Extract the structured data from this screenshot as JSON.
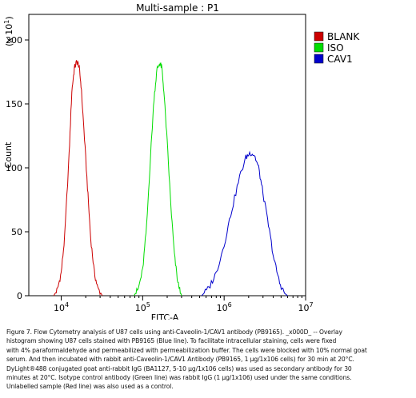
{
  "chart_data": {
    "type": "line",
    "title": "Multi-sample : P1",
    "xlabel": "FITC-A",
    "ylabel": "Count",
    "y_scale_label": "(x 10",
    "y_scale_exponent": "1",
    "y_scale_close": ")",
    "x_scale": "log",
    "xlim": [
      4000,
      10000000
    ],
    "ylim": [
      0,
      220
    ],
    "x_ticks": [
      {
        "value": 10000,
        "base": "10",
        "exp": "4"
      },
      {
        "value": 100000,
        "base": "10",
        "exp": "5"
      },
      {
        "value": 1000000,
        "base": "10",
        "exp": "6"
      },
      {
        "value": 10000000,
        "base": "10",
        "exp": "7"
      }
    ],
    "y_ticks": [
      {
        "value": 0,
        "label": "0"
      },
      {
        "value": 50,
        "label": "50"
      },
      {
        "value": 100,
        "label": "100"
      },
      {
        "value": 150,
        "label": "150"
      },
      {
        "value": 200,
        "label": "200"
      }
    ],
    "legend_position": "right",
    "series": [
      {
        "name": "BLANK",
        "color": "#cc0000",
        "points": [
          [
            8100,
            0
          ],
          [
            9000,
            5
          ],
          [
            10000,
            18
          ],
          [
            11000,
            45
          ],
          [
            12500,
            110
          ],
          [
            13500,
            160
          ],
          [
            14500,
            178
          ],
          [
            15500,
            183
          ],
          [
            16500,
            180
          ],
          [
            17500,
            165
          ],
          [
            19000,
            130
          ],
          [
            21000,
            85
          ],
          [
            23000,
            45
          ],
          [
            25500,
            18
          ],
          [
            28000,
            6
          ],
          [
            32000,
            0
          ]
        ]
      },
      {
        "name": "ISO",
        "color": "#00dd00",
        "points": [
          [
            78000,
            0
          ],
          [
            88000,
            5
          ],
          [
            100000,
            20
          ],
          [
            112000,
            55
          ],
          [
            125000,
            110
          ],
          [
            138000,
            155
          ],
          [
            150000,
            177
          ],
          [
            162000,
            182
          ],
          [
            172000,
            178
          ],
          [
            182000,
            160
          ],
          [
            200000,
            120
          ],
          [
            222000,
            70
          ],
          [
            245000,
            32
          ],
          [
            270000,
            10
          ],
          [
            300000,
            0
          ]
        ]
      },
      {
        "name": "CAV1",
        "color": "#0000cc",
        "points": [
          [
            530000,
            0
          ],
          [
            650000,
            6
          ],
          [
            800000,
            18
          ],
          [
            1000000,
            40
          ],
          [
            1250000,
            68
          ],
          [
            1550000,
            93
          ],
          [
            1850000,
            108
          ],
          [
            2100000,
            112
          ],
          [
            2350000,
            110
          ],
          [
            2650000,
            100
          ],
          [
            3000000,
            80
          ],
          [
            3500000,
            55
          ],
          [
            4100000,
            28
          ],
          [
            4800000,
            10
          ],
          [
            5500000,
            2
          ],
          [
            6000000,
            0
          ]
        ]
      }
    ]
  },
  "caption": [
    "Figure 7. Flow Cytometry analysis of U87 cells using anti-Caveolin-1/CAV1 antibody (PB9165). _x000D_ -- Overlay",
    "histogram showing U87 cells stained with PB9165 (Blue line). To facilitate intracellular staining, cells were fixed",
    "with 4% paraformaldehyde and permeabilized with permeabilization buffer. The cells were blocked with 10% normal goat",
    "serum. And then incubated with rabbit anti-Caveolin-1/CAV1 Antibody (PB9165, 1 μg/1x106 cells) for 30 min at 20°C.",
    "DyLight®488 conjugated goat anti-rabbit IgG (BA1127, 5-10 μg/1x106 cells) was used as secondary antibody for 30",
    "minutes at 20°C. Isotype control antibody (Green line) was rabbit IgG (1 μg/1x106) used under the same conditions.",
    "Unlabelled sample (Red line) was also used as a control."
  ]
}
